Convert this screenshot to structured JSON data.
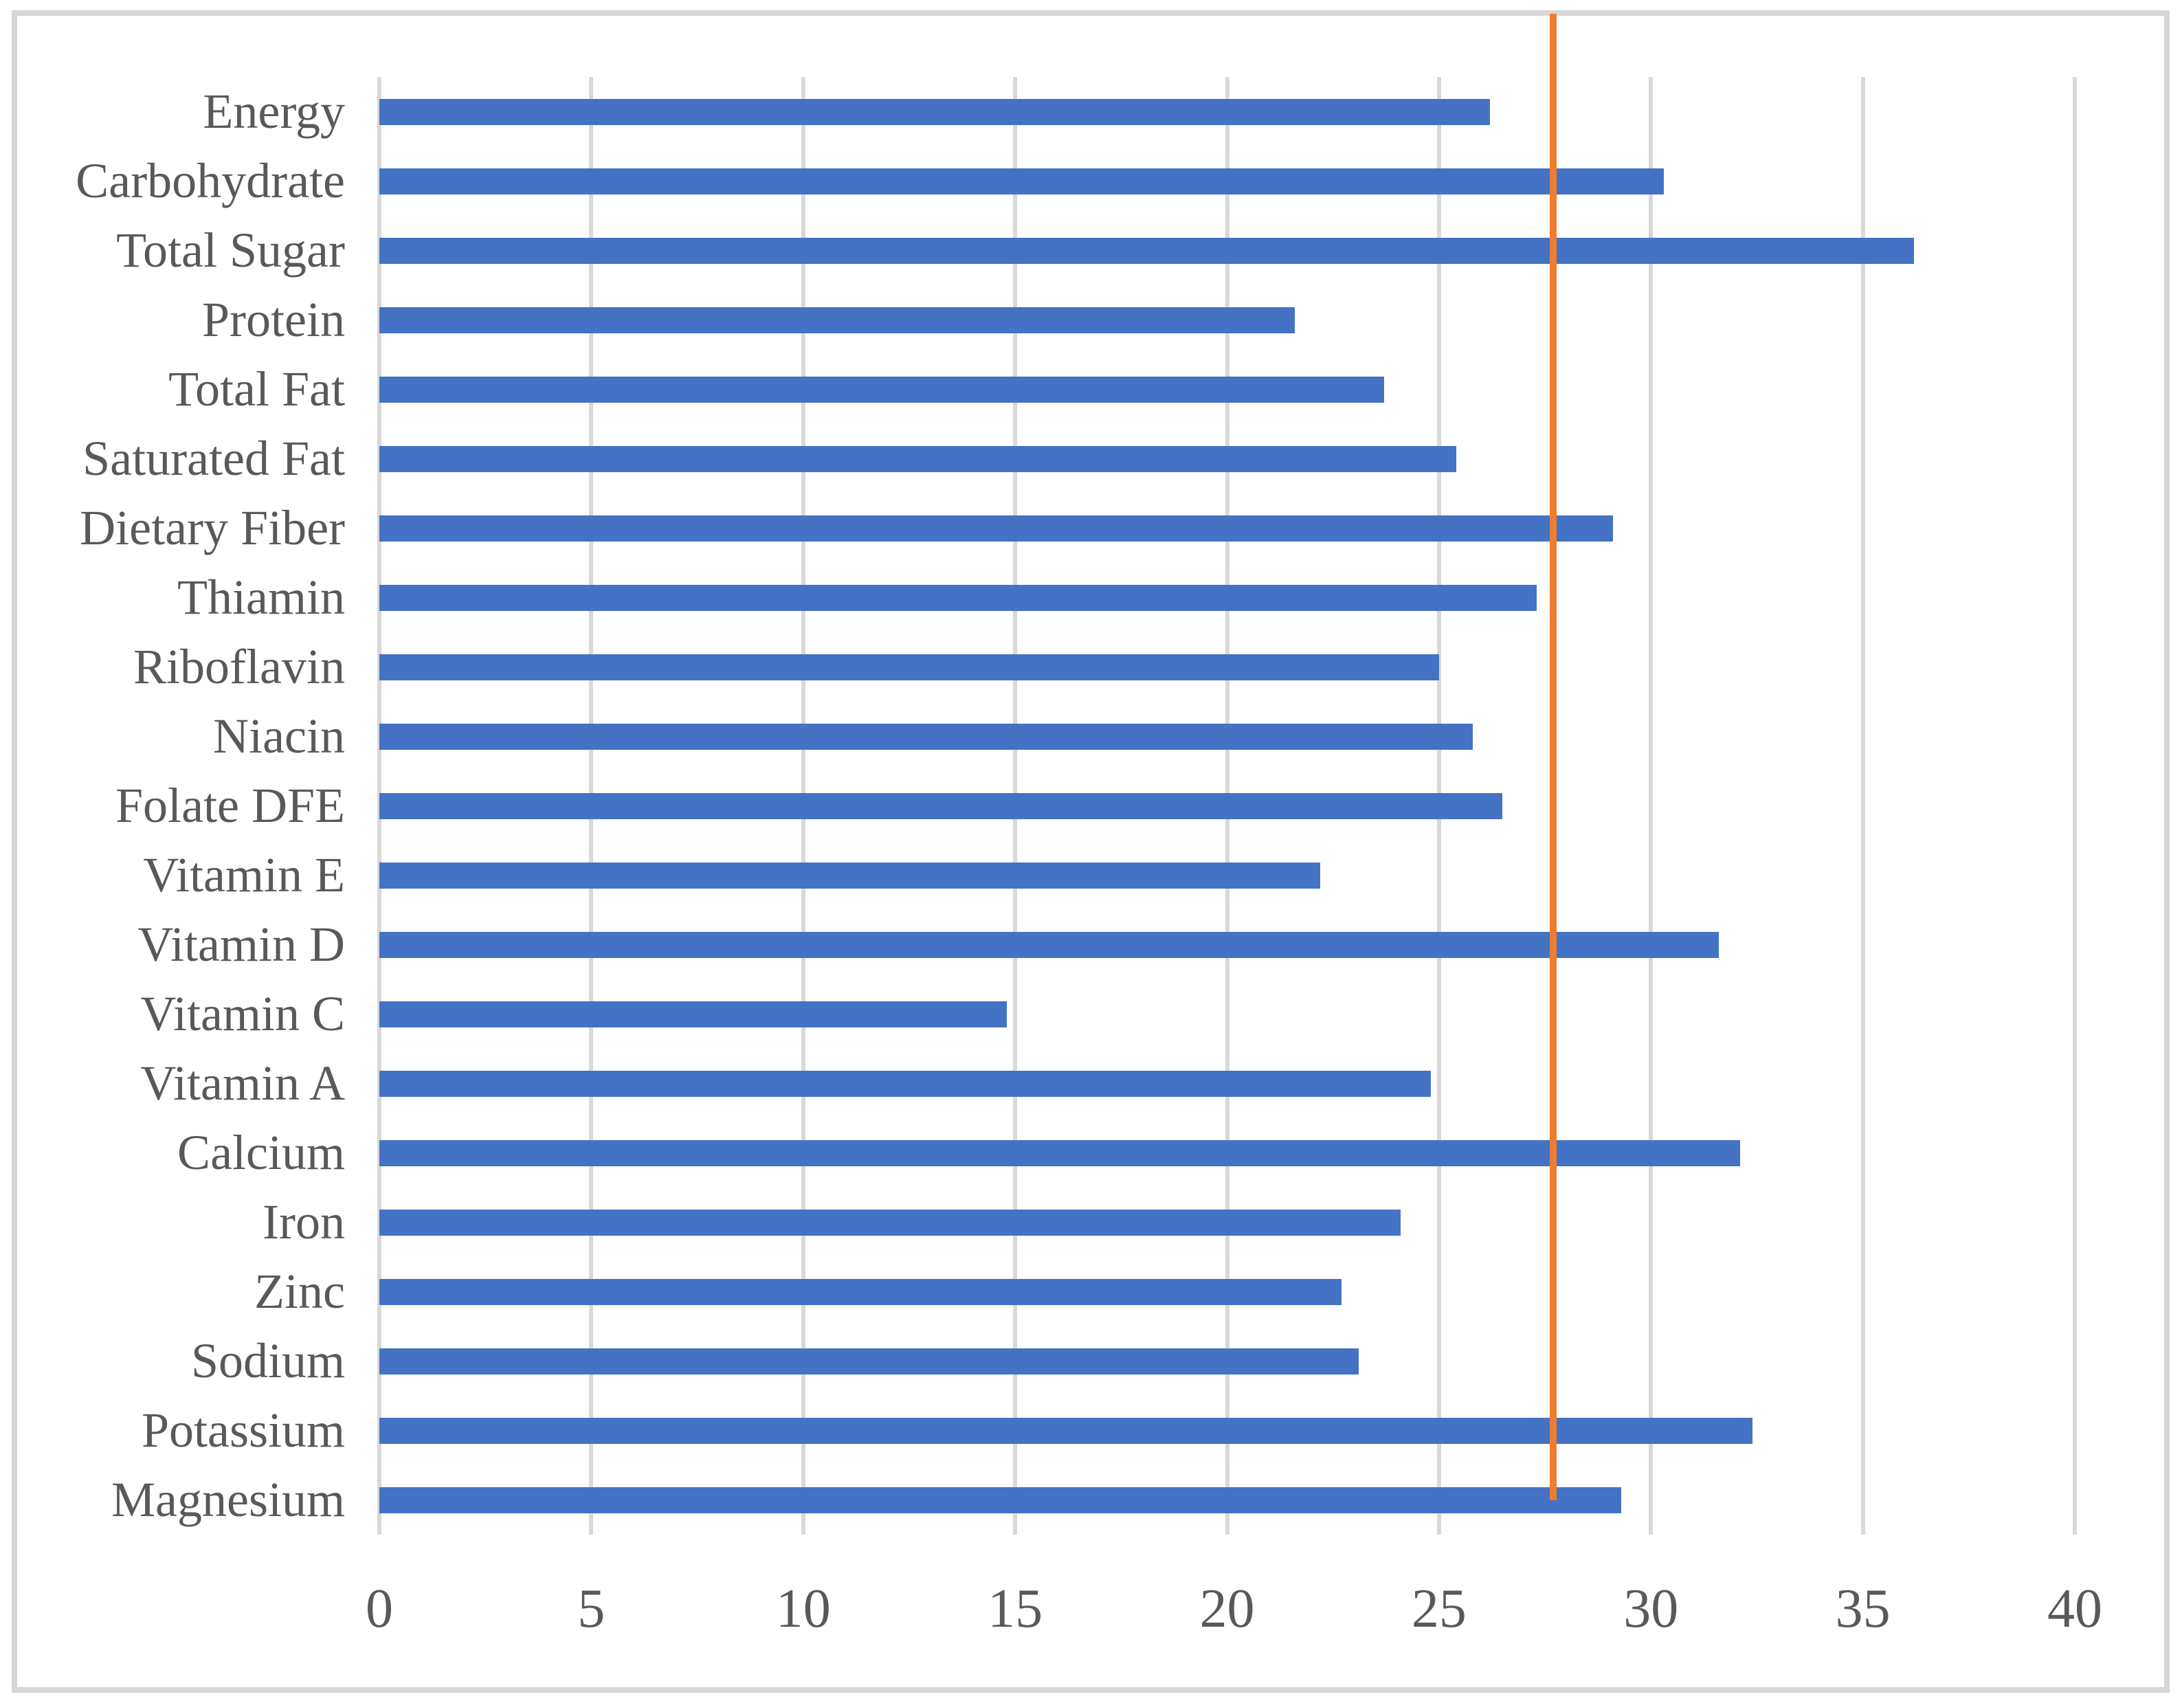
{
  "chart_data": {
    "type": "bar",
    "orientation": "horizontal",
    "title": "",
    "xlabel": "",
    "ylabel": "",
    "categories": [
      "Energy",
      "Carbohydrate",
      "Total Sugar",
      "Protein",
      "Total Fat",
      "Saturated Fat",
      "Dietary Fiber",
      "Thiamin",
      "Riboflavin",
      "Niacin",
      "Folate DFE",
      "Vitamin E",
      "Vitamin D",
      "Vitamin C",
      "Vitamin A",
      "Calcium",
      "Iron",
      "Zinc",
      "Sodium",
      "Potassium",
      "Magnesium"
    ],
    "values": [
      26.2,
      30.3,
      36.2,
      21.6,
      23.7,
      25.4,
      29.1,
      27.3,
      25.0,
      25.8,
      26.5,
      22.2,
      31.6,
      14.8,
      24.8,
      32.1,
      24.1,
      22.7,
      23.1,
      32.4,
      29.3
    ],
    "xlim": [
      0,
      40
    ],
    "x_ticks": [
      0,
      5,
      10,
      15,
      20,
      25,
      30,
      35,
      40
    ],
    "grid": "vertical-only",
    "legend": "none",
    "bar_color": "#4472C4",
    "reference_line": {
      "value": 27.7,
      "color": "#ED7D31"
    }
  },
  "colors": {
    "bar": "#4472C4",
    "reference_line": "#ED7D31",
    "gridline": "#D9D9D9",
    "frame_border": "#D6D6D6",
    "text": "#595959",
    "background": "#FFFFFF"
  }
}
